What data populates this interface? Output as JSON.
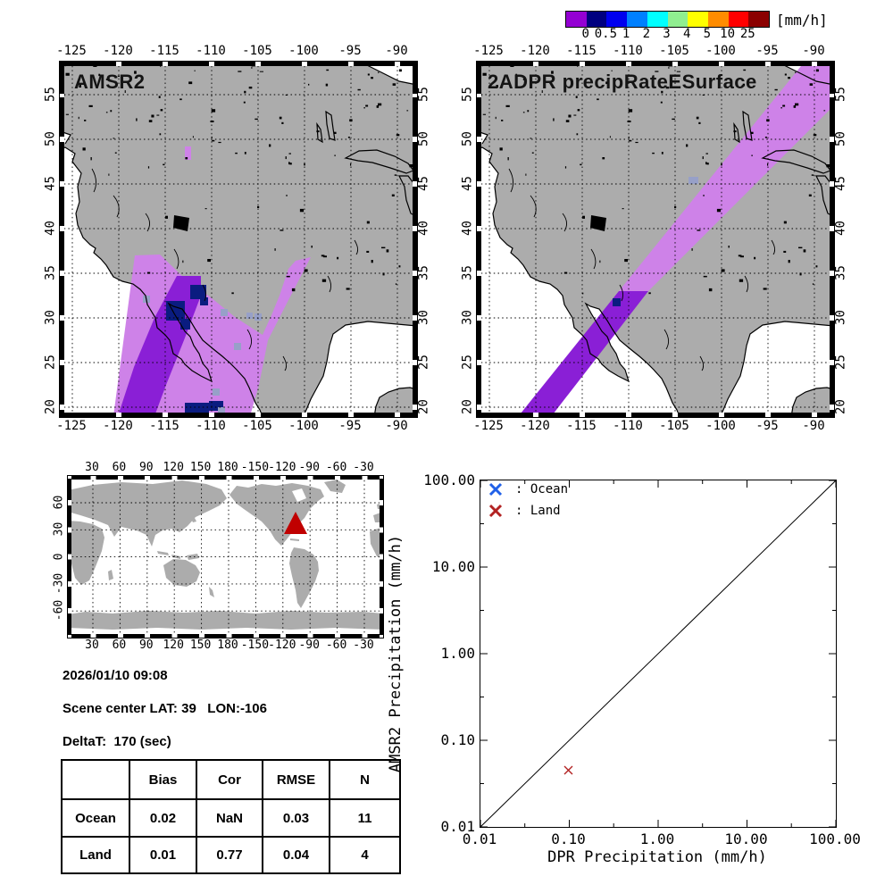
{
  "colorbar": {
    "unit_label": "[mm/h]",
    "tick_labels": [
      "0",
      "0.5",
      "1",
      "2",
      "3",
      "4",
      "5",
      "10",
      "25"
    ],
    "colors": [
      "#9400D3",
      "#000080",
      "#0000EE",
      "#0080FF",
      "#00FFFF",
      "#90EE90",
      "#FFFF00",
      "#FF8C00",
      "#FF0000",
      "#8B0000"
    ]
  },
  "maps": {
    "lon_ticks": [
      "-125",
      "-120",
      "-115",
      "-110",
      "-105",
      "-100",
      "-95",
      "-90"
    ],
    "lat_ticks": [
      "55",
      "50",
      "45",
      "40",
      "35",
      "30",
      "25",
      "20"
    ],
    "left": {
      "title": "AMSR2"
    },
    "right": {
      "title": "2ADPR precipRateESurface"
    },
    "land_color": "#ACACAC",
    "ocean_color": "#FFFFFF",
    "swath_colors": {
      "trace": "#CE82E8",
      "light_rain": "#8A1FD6",
      "heavy_cells": "#0A1C80",
      "missing": "#97A0C8"
    }
  },
  "world_map": {
    "lon_ticks": [
      "30",
      "60",
      "90",
      "120",
      "150",
      "180",
      "-150",
      "-120",
      "-90",
      "-60",
      "-30"
    ],
    "lat_ticks": [
      "60",
      "30",
      "0",
      "-30",
      "-60"
    ],
    "marker_color": "#C00000",
    "marker_lat": 39,
    "marker_lon": -106
  },
  "info": {
    "datetime": "2026/01/10 09:08",
    "scene_center": "Scene center LAT: 39   LON:-106",
    "delta_t": "DeltaT:  170 (sec)"
  },
  "stats_table": {
    "headers": [
      "",
      "Bias",
      "Cor",
      "RMSE",
      "N"
    ],
    "rows": [
      [
        "Ocean",
        "0.02",
        "NaN",
        "0.03",
        "11"
      ],
      [
        "Land",
        "0.01",
        "0.77",
        "0.04",
        "4"
      ]
    ]
  },
  "chart_data": [
    {
      "type": "scatter",
      "title": "AMSR2 vs DPR precipitation comparison",
      "xlabel": "DPR Precipitation (mm/h)",
      "ylabel": "AMSR2 Precipitation (mm/h)",
      "xscale": "log",
      "yscale": "log",
      "xlim": [
        0.01,
        100
      ],
      "ylim": [
        0.01,
        100
      ],
      "x_tick_labels": [
        "0.01",
        "0.10",
        "1.00",
        "10.00",
        "100.00"
      ],
      "y_tick_labels": [
        "100.00",
        "10.00",
        "1.00",
        "0.10",
        "0.01"
      ],
      "grid": false,
      "legend_position": "top-left",
      "reference_line": "y = x (1:1 diagonal)",
      "series": [
        {
          "name": "Ocean",
          "legend_label": ": Ocean",
          "marker": "x",
          "color": "#2060E8",
          "points": []
        },
        {
          "name": "Land",
          "legend_label": ": Land",
          "marker": "x",
          "color": "#B22222",
          "points": [
            [
              0.1,
              0.046
            ]
          ]
        }
      ]
    },
    {
      "type": "table",
      "title": "validation statistics",
      "columns": [
        "",
        "Bias",
        "Cor",
        "RMSE",
        "N"
      ],
      "rows": [
        [
          "Ocean",
          "0.02",
          "NaN",
          "0.03",
          "11"
        ],
        [
          "Land",
          "0.01",
          "0.77",
          "0.04",
          "4"
        ]
      ]
    }
  ]
}
